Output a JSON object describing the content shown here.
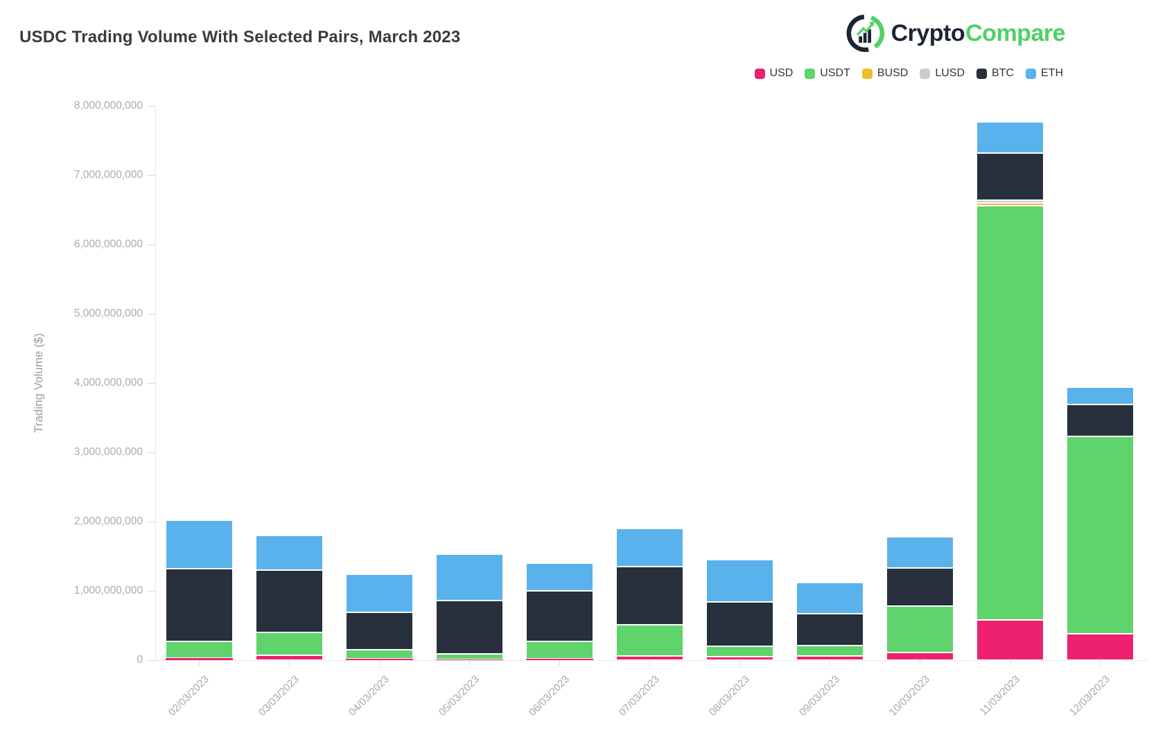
{
  "page": {
    "title": "USDC Trading Volume With Selected Pairs, March 2023"
  },
  "logo": {
    "brand_dark": "Crypto",
    "brand_green": "Compare",
    "color_dark": "#1d2534",
    "color_green": "#4fd166"
  },
  "chart_data": {
    "type": "bar",
    "stacked": true,
    "title": "USDC Trading Volume With Selected Pairs, March 2023",
    "xlabel": "",
    "ylabel": "Trading Volume ($)",
    "unit": "values in billions of $",
    "ylim": [
      0,
      8000000000
    ],
    "grid": false,
    "legend_position": "top-right",
    "categories": [
      "02/03/2023",
      "03/03/2023",
      "04/03/2023",
      "05/03/2023",
      "06/03/2023",
      "07/03/2023",
      "08/03/2023",
      "09/03/2023",
      "10/03/2023",
      "11/03/2023",
      "12/03/2023"
    ],
    "y_tick_labels": [
      "0",
      "1,000,000,000",
      "2,000,000,000",
      "3,000,000,000",
      "4,000,000,000",
      "5,000,000,000",
      "6,000,000,000",
      "7,000,000,000",
      "8,000,000,000"
    ],
    "series": [
      {
        "name": "USD",
        "color": "#ed2170",
        "values_billions": [
          0.03,
          0.07,
          0.02,
          0.01,
          0.02,
          0.06,
          0.05,
          0.06,
          0.11,
          0.58,
          0.38
        ]
      },
      {
        "name": "USDT",
        "color": "#5fd36c",
        "values_billions": [
          0.24,
          0.33,
          0.13,
          0.08,
          0.25,
          0.45,
          0.15,
          0.15,
          0.67,
          5.98,
          2.85
        ]
      },
      {
        "name": "BUSD",
        "color": "#f3ba2f",
        "values_billions": [
          0,
          0,
          0,
          0,
          0,
          0,
          0,
          0,
          0,
          0.04,
          0
        ]
      },
      {
        "name": "LUSD",
        "color": "#cccccc",
        "values_billions": [
          0,
          0,
          0,
          0,
          0,
          0,
          0,
          0,
          0,
          0.04,
          0
        ]
      },
      {
        "name": "BTC",
        "color": "#27303c",
        "values_billions": [
          1.05,
          0.9,
          0.54,
          0.77,
          0.73,
          0.84,
          0.64,
          0.46,
          0.55,
          0.68,
          0.46
        ]
      },
      {
        "name": "ETH",
        "color": "#5ab2ec",
        "values_billions": [
          0.7,
          0.5,
          0.55,
          0.67,
          0.4,
          0.55,
          0.61,
          0.45,
          0.45,
          0.45,
          0.25
        ]
      }
    ]
  }
}
